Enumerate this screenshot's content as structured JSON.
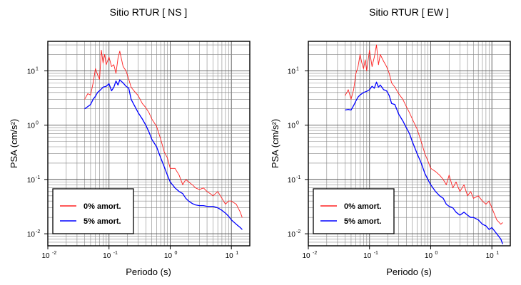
{
  "chart_data": [
    {
      "type": "line",
      "title": "Sitio RTUR [ NS ]",
      "xlabel": "Periodo (s)",
      "ylabel": "PSA (cm/s²)",
      "xscale": "log",
      "yscale": "log",
      "xlim": [
        0.01,
        20
      ],
      "ylim": [
        0.006,
        35
      ],
      "xticks": [
        {
          "base": "10",
          "exp": "-2"
        },
        {
          "base": "10",
          "exp": "-1"
        },
        {
          "base": "10",
          "exp": "0"
        },
        {
          "base": "10",
          "exp": "1"
        }
      ],
      "yticks": [
        {
          "base": "10",
          "exp": "-2"
        },
        {
          "base": "10",
          "exp": "-1"
        },
        {
          "base": "10",
          "exp": "0"
        },
        {
          "base": "10",
          "exp": "1"
        }
      ],
      "grid": true,
      "legend_position": "bottom-left",
      "series": [
        {
          "name": "0% amort.",
          "color": "#ff2020",
          "x": [
            0.04,
            0.045,
            0.05,
            0.055,
            0.06,
            0.065,
            0.07,
            0.075,
            0.08,
            0.085,
            0.09,
            0.1,
            0.11,
            0.12,
            0.13,
            0.14,
            0.15,
            0.17,
            0.19,
            0.21,
            0.23,
            0.26,
            0.3,
            0.35,
            0.4,
            0.45,
            0.5,
            0.6,
            0.7,
            0.8,
            0.9,
            1.0,
            1.2,
            1.4,
            1.6,
            1.8,
            2.0,
            2.3,
            2.6,
            3.0,
            3.5,
            4.0,
            4.5,
            5.0,
            6.0,
            7.0,
            8.0,
            9.0,
            10,
            12,
            14,
            15
          ],
          "y": [
            3.0,
            3.8,
            3.6,
            6.0,
            11,
            8.5,
            7,
            24,
            14,
            20,
            13,
            18,
            12,
            13,
            9,
            17,
            23,
            12,
            10,
            7,
            5,
            4.2,
            3.5,
            2.5,
            2.1,
            1.7,
            1.3,
            0.95,
            0.55,
            0.32,
            0.25,
            0.16,
            0.16,
            0.12,
            0.08,
            0.1,
            0.09,
            0.08,
            0.07,
            0.065,
            0.07,
            0.06,
            0.055,
            0.05,
            0.06,
            0.045,
            0.035,
            0.04,
            0.04,
            0.035,
            0.025,
            0.02
          ]
        },
        {
          "name": "5% amort.",
          "color": "#0000ff",
          "x": [
            0.04,
            0.045,
            0.05,
            0.055,
            0.06,
            0.065,
            0.07,
            0.08,
            0.09,
            0.1,
            0.11,
            0.12,
            0.13,
            0.14,
            0.15,
            0.17,
            0.19,
            0.21,
            0.23,
            0.26,
            0.3,
            0.35,
            0.4,
            0.45,
            0.5,
            0.6,
            0.7,
            0.8,
            0.9,
            1.0,
            1.2,
            1.4,
            1.6,
            1.8,
            2.0,
            2.3,
            2.6,
            3.0,
            3.5,
            4.0,
            4.5,
            5.0,
            6.0,
            7.0,
            8.0,
            9.0,
            10,
            12,
            14,
            15
          ],
          "y": [
            2.0,
            2.2,
            2.4,
            3.0,
            3.4,
            4.0,
            4.3,
            5.0,
            5.2,
            5.8,
            4.3,
            5.0,
            6.5,
            5.5,
            6.8,
            6.0,
            5.2,
            4.8,
            3.0,
            2.3,
            1.7,
            1.3,
            1.0,
            0.75,
            0.55,
            0.4,
            0.25,
            0.17,
            0.12,
            0.09,
            0.07,
            0.06,
            0.055,
            0.045,
            0.04,
            0.036,
            0.034,
            0.033,
            0.033,
            0.032,
            0.032,
            0.032,
            0.03,
            0.027,
            0.024,
            0.021,
            0.018,
            0.015,
            0.013,
            0.012
          ]
        }
      ]
    },
    {
      "type": "line",
      "title": "Sitio RTUR [ EW ]",
      "xlabel": "Periodo (s)",
      "ylabel": "PSA (cm/s²)",
      "xscale": "log",
      "yscale": "log",
      "xlim": [
        0.01,
        20
      ],
      "ylim": [
        0.006,
        35
      ],
      "xticks": [
        {
          "base": "10",
          "exp": "-2"
        },
        {
          "base": "10",
          "exp": "-1"
        },
        {
          "base": "10",
          "exp": "0"
        },
        {
          "base": "10",
          "exp": "1"
        }
      ],
      "yticks": [
        {
          "base": "10",
          "exp": "-2"
        },
        {
          "base": "10",
          "exp": "-1"
        },
        {
          "base": "10",
          "exp": "0"
        },
        {
          "base": "10",
          "exp": "1"
        }
      ],
      "grid": true,
      "legend_position": "bottom-left",
      "series": [
        {
          "name": "0% amort.",
          "color": "#ff2020",
          "x": [
            0.04,
            0.045,
            0.05,
            0.055,
            0.06,
            0.065,
            0.07,
            0.075,
            0.08,
            0.085,
            0.09,
            0.1,
            0.11,
            0.12,
            0.13,
            0.14,
            0.15,
            0.17,
            0.19,
            0.21,
            0.23,
            0.26,
            0.3,
            0.35,
            0.4,
            0.45,
            0.5,
            0.6,
            0.7,
            0.8,
            0.9,
            1.0,
            1.2,
            1.4,
            1.6,
            1.8,
            2.0,
            2.3,
            2.6,
            3.0,
            3.5,
            4.0,
            4.5,
            5.0,
            6.0,
            7.0,
            8.0,
            9.0,
            10,
            12,
            14,
            15
          ],
          "y": [
            3.5,
            4.5,
            3.0,
            4.5,
            9,
            12,
            20,
            14,
            11,
            16,
            10,
            24,
            12,
            18,
            30,
            13,
            20,
            15,
            12,
            9,
            6,
            5,
            3.8,
            3.0,
            2.2,
            1.7,
            1.3,
            0.85,
            0.5,
            0.3,
            0.22,
            0.16,
            0.14,
            0.12,
            0.1,
            0.08,
            0.12,
            0.07,
            0.09,
            0.06,
            0.08,
            0.05,
            0.06,
            0.045,
            0.05,
            0.04,
            0.035,
            0.04,
            0.03,
            0.018,
            0.015,
            0.016
          ]
        },
        {
          "name": "5% amort.",
          "color": "#0000ff",
          "x": [
            0.04,
            0.045,
            0.05,
            0.055,
            0.06,
            0.065,
            0.07,
            0.08,
            0.09,
            0.1,
            0.11,
            0.12,
            0.13,
            0.14,
            0.15,
            0.17,
            0.19,
            0.21,
            0.23,
            0.26,
            0.3,
            0.35,
            0.4,
            0.45,
            0.5,
            0.6,
            0.7,
            0.8,
            0.9,
            1.0,
            1.2,
            1.4,
            1.6,
            1.8,
            2.0,
            2.3,
            2.6,
            3.0,
            3.5,
            4.0,
            4.5,
            5.0,
            6.0,
            7.0,
            8.0,
            9.0,
            10,
            12,
            14,
            15
          ],
          "y": [
            1.9,
            1.95,
            1.9,
            2.3,
            2.8,
            3.3,
            3.6,
            4.0,
            4.2,
            4.5,
            5.2,
            4.8,
            6.2,
            5.0,
            5.5,
            4.5,
            4.3,
            3.5,
            2.5,
            2.4,
            1.6,
            1.2,
            0.9,
            0.7,
            0.5,
            0.3,
            0.2,
            0.13,
            0.1,
            0.08,
            0.06,
            0.05,
            0.045,
            0.035,
            0.032,
            0.03,
            0.025,
            0.022,
            0.025,
            0.022,
            0.02,
            0.02,
            0.018,
            0.015,
            0.014,
            0.012,
            0.013,
            0.01,
            0.008,
            0.0065
          ]
        }
      ]
    }
  ]
}
